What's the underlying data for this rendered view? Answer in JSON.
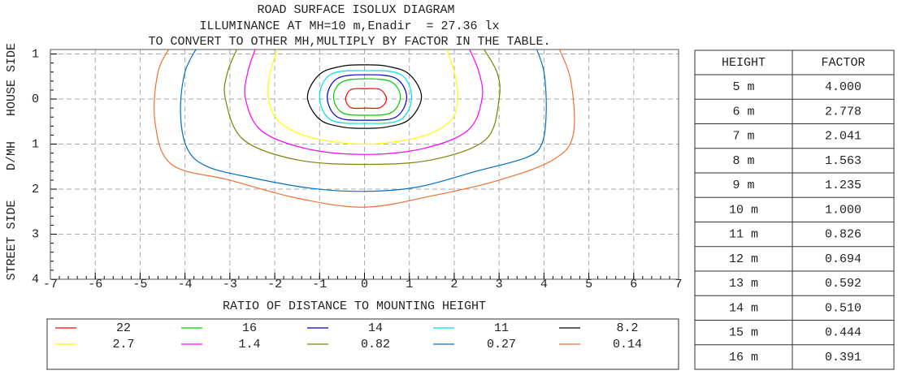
{
  "chart_data": {
    "type": "contour",
    "title": "ROAD SURFACE ISOLUX DIAGRAM",
    "subtitle": "ILLUMINANCE AT MH=10 m,Enadir  = 27.36 lx",
    "note": "TO CONVERT TO OTHER MH,MULTIPLY BY FACTOR IN THE TABLE.",
    "x_label": "RATIO OF DISTANCE TO MOUNTING HEIGHT",
    "y_labels": [
      "STREET SIDE",
      "D/MH",
      "HOUSE SIDE"
    ],
    "xlim": [
      -7,
      7
    ],
    "ylim": [
      -1.1,
      4
    ],
    "xticks": [
      -7,
      -6,
      -5,
      -4,
      -3,
      -2,
      -1,
      0,
      1,
      2,
      3,
      4,
      5,
      6,
      7
    ],
    "yticks": [
      {
        "value": -1,
        "label": "1"
      },
      0,
      1,
      2,
      3,
      4
    ],
    "grid": true,
    "series": [
      {
        "name": "22",
        "color": "#ff0000",
        "closed": true,
        "x": [
          0.49,
          0.35,
          0.03,
          -0.3,
          -0.42,
          -0.3,
          0.03,
          0.35
        ],
        "y": [
          0,
          -0.21,
          -0.23,
          -0.21,
          0,
          0.19,
          0.2,
          0.19
        ]
      },
      {
        "name": "16",
        "color": "#00cc00",
        "closed": true,
        "x": [
          0.8,
          0.6,
          0.05,
          -0.5,
          -0.69,
          -0.5,
          0.05,
          0.6
        ],
        "y": [
          -0.05,
          -0.38,
          -0.45,
          -0.38,
          -0.05,
          0.3,
          0.36,
          0.3
        ]
      },
      {
        "name": "14",
        "color": "#0000cc",
        "closed": true,
        "x": [
          0.94,
          0.7,
          0.05,
          -0.6,
          -0.83,
          -0.6,
          0.05,
          0.7
        ],
        "y": [
          -0.04,
          -0.46,
          -0.54,
          -0.46,
          -0.04,
          0.4,
          0.47,
          0.4
        ]
      },
      {
        "name": "11",
        "color": "#00e0e0",
        "closed": true,
        "x": [
          1.05,
          0.8,
          0.02,
          -0.75,
          -1.0,
          -0.75,
          0.02,
          0.8
        ],
        "y": [
          -0.05,
          -0.55,
          -0.63,
          -0.55,
          -0.05,
          0.46,
          0.54,
          0.46
        ]
      },
      {
        "name": "8.2",
        "color": "#000000",
        "closed": true,
        "x": [
          1.27,
          1.0,
          0.5,
          0,
          -0.5,
          -1.0,
          -1.27,
          -1.0,
          -0.5,
          0,
          0.5,
          1.0
        ],
        "y": [
          -0.05,
          -0.55,
          -0.73,
          -0.76,
          -0.73,
          -0.55,
          -0.05,
          0.45,
          0.62,
          0.65,
          0.62,
          0.45
        ]
      },
      {
        "name": "2.7",
        "color": "#ffff00",
        "closed": false,
        "x": [
          -1.9,
          -2.1,
          -2.14,
          -1.9,
          -1.2,
          0,
          1.2,
          1.9,
          2.08,
          2.0,
          1.8
        ],
        "y": [
          -1.2,
          -0.6,
          0,
          0.5,
          0.85,
          1.0,
          0.85,
          0.5,
          0,
          -0.6,
          -1.2
        ]
      },
      {
        "name": "1.4",
        "color": "#ff00ff",
        "closed": false,
        "x": [
          -2.4,
          -2.6,
          -2.65,
          -2.3,
          -1.3,
          0,
          1.3,
          2.3,
          2.62,
          2.55,
          2.3
        ],
        "y": [
          -1.2,
          -0.6,
          0,
          0.7,
          1.1,
          1.23,
          1.1,
          0.7,
          0,
          -0.6,
          -1.2
        ]
      },
      {
        "name": "0.82",
        "color": "#808000",
        "closed": false,
        "x": [
          -2.8,
          -3.05,
          -3.1,
          -2.7,
          -1.5,
          0,
          1.5,
          2.7,
          3.0,
          2.95,
          2.6
        ],
        "y": [
          -1.2,
          -0.6,
          0,
          0.9,
          1.35,
          1.45,
          1.35,
          0.9,
          0,
          -0.6,
          -1.2
        ]
      },
      {
        "name": "0.27",
        "color": "#0070c0",
        "closed": false,
        "x": [
          -3.7,
          -4.0,
          -4.1,
          -3.95,
          -3.5,
          -2.5,
          -1.2,
          0,
          1.2,
          2.5,
          3.6,
          3.95,
          4.05,
          4.0,
          3.8
        ],
        "y": [
          -1.2,
          -0.6,
          0.3,
          1.1,
          1.5,
          1.75,
          1.98,
          2.05,
          1.95,
          1.6,
          1.3,
          1.0,
          0.3,
          -0.6,
          -1.2
        ]
      },
      {
        "name": "0.14",
        "color": "#f07030",
        "closed": false,
        "x": [
          -4.3,
          -4.6,
          -4.67,
          -4.3,
          -3.0,
          -1.5,
          0,
          1.5,
          3.0,
          4.2,
          4.65,
          4.6,
          4.3
        ],
        "y": [
          -1.2,
          -0.6,
          0.5,
          1.45,
          1.8,
          2.2,
          2.4,
          2.15,
          1.8,
          1.35,
          0.8,
          -0.4,
          -1.2
        ]
      }
    ]
  },
  "table": {
    "header": [
      "HEIGHT",
      "FACTOR"
    ],
    "rows": [
      [
        "5 m",
        "4.000"
      ],
      [
        "6 m",
        "2.778"
      ],
      [
        "7 m",
        "2.041"
      ],
      [
        "8 m",
        "1.563"
      ],
      [
        "9 m",
        "1.235"
      ],
      [
        "10 m",
        "1.000"
      ],
      [
        "11 m",
        "0.826"
      ],
      [
        "12 m",
        "0.694"
      ],
      [
        "13 m",
        "0.592"
      ],
      [
        "14 m",
        "0.510"
      ],
      [
        "15 m",
        "0.444"
      ],
      [
        "16 m",
        "0.391"
      ]
    ]
  }
}
